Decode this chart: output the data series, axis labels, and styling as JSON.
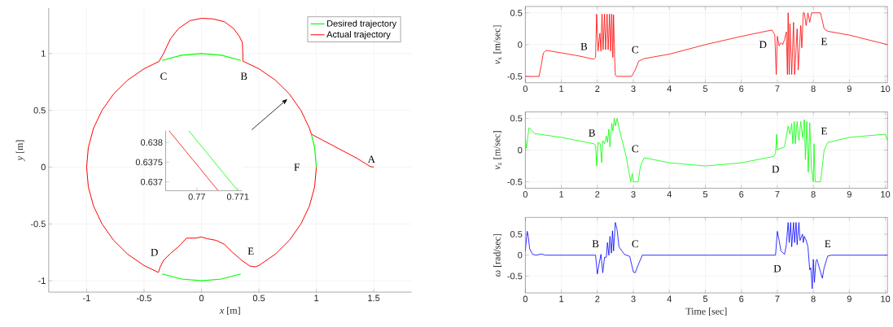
{
  "chart_data": [
    {
      "type": "line",
      "xlabel": "*x* [m]",
      "ylabel": "*y* [m]",
      "xlim": [
        -1.33,
        1.83
      ],
      "ylim": [
        -1.1,
        1.4
      ],
      "xticks": [
        -1,
        -0.5,
        0,
        0.5,
        1,
        1.5
      ],
      "yticks": [
        -1,
        -0.5,
        0,
        0.5,
        1
      ],
      "grid": true,
      "legend": "top right",
      "series": [
        {
          "name": "Desired trajectory",
          "color": "#00ff00",
          "x": [
            1,
            0.985,
            0.956,
            null,
            0.342,
            0.174,
            0,
            -0.174,
            -0.342,
            null,
            -0.342,
            -0.174,
            0,
            0.174,
            0.342
          ],
          "values": [
            0,
            0.174,
            0.292,
            null,
            0.94,
            0.985,
            1,
            0.985,
            0.94,
            null,
            -0.94,
            -0.985,
            -1,
            -0.985,
            -0.94
          ]
        },
        {
          "name": "Actual trajectory",
          "color": "#ff0000",
          "x": [
            1.5,
            1.47,
            1.43,
            1.35,
            1.2,
            1.05,
            0.975,
            0.956,
            0.94,
            0.866,
            0.766,
            0.643,
            0.5,
            0.36,
            0.36,
            0.355,
            0.33,
            0.28,
            0.2,
            0.1,
            0,
            -0.1,
            -0.2,
            -0.27,
            -0.33,
            -0.37,
            -0.42,
            -0.5,
            -0.643,
            -0.766,
            -0.866,
            -0.94,
            -0.985,
            -1,
            -0.985,
            -0.94,
            -0.866,
            -0.766,
            -0.643,
            -0.5,
            -0.375,
            -0.36,
            -0.33,
            -0.27,
            -0.2,
            -0.13,
            -0.05,
            0,
            0.05,
            0.13,
            0.2,
            0.27,
            0.35,
            0.42,
            0.47,
            0.5,
            0.643,
            0.766,
            0.866,
            0.94,
            0.985,
            1
          ],
          "values": [
            0,
            0.005,
            0.03,
            0.08,
            0.16,
            0.24,
            0.28,
            0.292,
            0.342,
            0.5,
            0.643,
            0.766,
            0.866,
            0.933,
            1.0,
            1.1,
            1.15,
            1.22,
            1.28,
            1.305,
            1.31,
            1.29,
            1.22,
            1.13,
            1.0,
            0.93,
            0.906,
            0.866,
            0.766,
            0.643,
            0.5,
            0.342,
            0.174,
            0,
            -0.174,
            -0.342,
            -0.5,
            -0.643,
            -0.766,
            -0.866,
            -0.927,
            -0.88,
            -0.82,
            -0.76,
            -0.7,
            -0.625,
            -0.625,
            -0.615,
            -0.63,
            -0.645,
            -0.68,
            -0.75,
            -0.82,
            -0.87,
            -0.878,
            -0.866,
            -0.766,
            -0.643,
            -0.5,
            -0.342,
            -0.174,
            0
          ]
        }
      ],
      "annotations": [
        "A",
        "B",
        "C",
        "D",
        "E",
        "F"
      ]
    },
    {
      "type": "line",
      "xlim": [
        0.76924,
        0.7711
      ],
      "ylim": [
        0.63678,
        0.6383
      ],
      "xticks": [
        0.77,
        0.771
      ],
      "yticks": [
        0.637,
        0.6375,
        0.638
      ],
      "series": [
        {
          "color": "#00ff00",
          "x": [
            0.7698,
            0.771
          ],
          "values": [
            0.6383,
            0.63678
          ]
        },
        {
          "color": "#ff0000",
          "x": [
            0.76932,
            0.77052
          ],
          "values": [
            0.6383,
            0.63678
          ]
        }
      ]
    },
    {
      "type": "line",
      "ylabel": "*v*$_{x}$ [m/sec]",
      "xlim": [
        0,
        10.06
      ],
      "ylim": [
        -0.6,
        0.6
      ],
      "xticks": [
        0,
        1,
        2,
        3,
        4,
        5,
        6,
        7,
        8,
        9,
        10
      ],
      "yticks": [
        -0.5,
        0,
        0.5
      ],
      "grid": true,
      "series": [
        {
          "color": "#ff0000",
          "x": [
            0,
            0.38,
            0.45,
            0.5,
            0.58,
            1.0,
            1.5,
            1.9,
            1.95,
            1.98,
            2.02,
            2.07,
            2.1,
            2.13,
            2.16,
            2.2,
            2.23,
            2.27,
            2.3,
            2.34,
            2.37,
            2.4,
            2.43,
            2.45,
            2.48,
            2.5,
            2.55,
            2.95,
            3.05,
            3.15,
            3.3,
            4,
            5,
            6,
            6.85,
            6.93,
            6.97,
            7.0,
            7.05,
            7.1,
            7.15,
            7.2,
            7.25,
            7.28,
            7.3,
            7.33,
            7.35,
            7.4,
            7.45,
            7.48,
            7.55,
            7.58,
            7.65,
            7.68,
            7.72,
            7.75,
            7.8,
            7.85,
            7.9,
            7.95,
            8.2,
            8.3,
            8.4,
            9,
            10.06
          ],
          "values": [
            -0.5,
            -0.5,
            -0.3,
            -0.13,
            -0.09,
            -0.13,
            -0.18,
            -0.23,
            -0.2,
            0.48,
            -0.1,
            0.18,
            -0.1,
            0.48,
            -0.08,
            0.48,
            -0.08,
            0.48,
            -0.08,
            0.48,
            -0.1,
            0.48,
            -0.2,
            0.47,
            -0.2,
            -0.48,
            -0.5,
            -0.5,
            -0.4,
            -0.26,
            -0.22,
            -0.15,
            0,
            0.13,
            0.23,
            0.15,
            -0.47,
            0.13,
            -0.02,
            0.03,
            0.0,
            0.08,
            0.2,
            -0.47,
            0.5,
            -0.47,
            0.33,
            -0.47,
            0.35,
            -0.47,
            0.25,
            -0.4,
            0.3,
            -0.05,
            0.5,
            0.5,
            0.3,
            0.5,
            0.35,
            0.5,
            0.5,
            0.25,
            0.21,
            0.15,
            0
          ]
        }
      ],
      "annotations": [
        "B",
        "C",
        "D",
        "E"
      ]
    },
    {
      "type": "line",
      "ylabel": "*v*$_{z}$ [m/sec]",
      "xlim": [
        0,
        10.06
      ],
      "ylim": [
        -0.6,
        0.6
      ],
      "xticks": [
        0,
        1,
        2,
        3,
        4,
        5,
        6,
        7,
        8,
        9,
        10
      ],
      "yticks": [
        -0.5,
        0,
        0.5
      ],
      "grid": true,
      "series": [
        {
          "color": "#00ff00",
          "x": [
            0,
            0.03,
            0.1,
            0.15,
            0.25,
            1,
            1.9,
            1.95,
            1.98,
            2.02,
            2.08,
            2.12,
            2.15,
            2.2,
            2.25,
            2.28,
            2.32,
            2.35,
            2.4,
            2.43,
            2.47,
            2.5,
            2.55,
            2.6,
            2.8,
            2.93,
            2.97,
            3.0,
            3.13,
            3.2,
            3.3,
            4,
            5,
            6,
            6.9,
            6.95,
            6.98,
            7.0,
            7.05,
            7.2,
            7.3,
            7.35,
            7.4,
            7.43,
            7.47,
            7.5,
            7.55,
            7.6,
            7.65,
            7.7,
            7.75,
            7.78,
            7.82,
            7.86,
            7.9,
            7.95,
            8.0,
            8.02,
            8.05,
            8.2,
            8.3,
            8.4,
            9,
            10,
            10.06
          ],
          "values": [
            0.18,
            0.03,
            0.35,
            0.33,
            0.26,
            0.2,
            0.1,
            0.08,
            -0.25,
            0.12,
            0.1,
            -0.2,
            0.15,
            0.1,
            0.22,
            0.12,
            0.33,
            0.05,
            0.42,
            0.3,
            0.5,
            0.38,
            0.5,
            0.35,
            -0.1,
            -0.5,
            -0.37,
            -0.5,
            -0.5,
            -0.25,
            -0.12,
            -0.2,
            -0.25,
            -0.2,
            -0.1,
            -0.05,
            0.25,
            0,
            0.02,
            0.05,
            0.38,
            0.25,
            0.42,
            0.1,
            0.45,
            0.1,
            0.45,
            0.15,
            0.45,
            0.2,
            0.48,
            -0.15,
            0.45,
            -0.35,
            0.43,
            -0.3,
            -0.5,
            0.1,
            -0.5,
            -0.5,
            0,
            0.12,
            0.2,
            0.25,
            0.15
          ]
        }
      ],
      "annotations": [
        "B",
        "C",
        "D",
        "E"
      ]
    },
    {
      "type": "line",
      "xlabel": "Time [sec]",
      "ylabel": "*ω* [rad/sec]",
      "xlim": [
        0,
        10.06
      ],
      "ylim": [
        -0.9,
        0.9
      ],
      "xticks": [
        0,
        1,
        2,
        3,
        4,
        5,
        6,
        7,
        8,
        9,
        10
      ],
      "yticks": [
        -0.5,
        0,
        0.5
      ],
      "grid": true,
      "series": [
        {
          "color": "#0000ff",
          "x": [
            0,
            0.05,
            0.08,
            0.12,
            0.2,
            0.3,
            0.45,
            0.55,
            1,
            1.95,
            2.0,
            2.05,
            2.1,
            2.15,
            2.2,
            2.25,
            2.28,
            2.32,
            2.35,
            2.39,
            2.42,
            2.45,
            2.5,
            2.55,
            2.6,
            2.75,
            2.9,
            3.0,
            3.05,
            3.15,
            3.25,
            5,
            6.95,
            7.0,
            7.05,
            7.1,
            7.2,
            7.25,
            7.3,
            7.33,
            7.37,
            7.4,
            7.45,
            7.48,
            7.52,
            7.55,
            7.6,
            7.63,
            7.7,
            7.72,
            7.75,
            7.8,
            7.85,
            7.9,
            7.93,
            7.97,
            8.0,
            8.03,
            8.07,
            8.1,
            8.25,
            8.3,
            8.4,
            8.5,
            10.06
          ],
          "values": [
            0.1,
            0.57,
            0.45,
            0.15,
            0.02,
            0,
            0.03,
            0,
            0,
            0,
            -0.45,
            -0.2,
            0.02,
            -0.42,
            -0.05,
            -0.05,
            0.3,
            0,
            0.45,
            0.05,
            0.58,
            0.1,
            0.78,
            0.6,
            0.2,
            0.02,
            -0.03,
            -0.4,
            -0.42,
            -0.2,
            0,
            0,
            0,
            0.57,
            0.35,
            0.1,
            0.02,
            0.25,
            0.78,
            0.3,
            0.78,
            0.2,
            0.78,
            0.3,
            0.78,
            0.25,
            0.78,
            0.35,
            0.5,
            0.3,
            0.45,
            0.35,
            0.2,
            -0.35,
            -0.3,
            -0.8,
            -0.1,
            -0.65,
            -0.15,
            -0.1,
            -0.55,
            -0.3,
            -0.02,
            0,
            0
          ]
        }
      ],
      "annotations": [
        "B",
        "C",
        "D",
        "E"
      ]
    }
  ]
}
